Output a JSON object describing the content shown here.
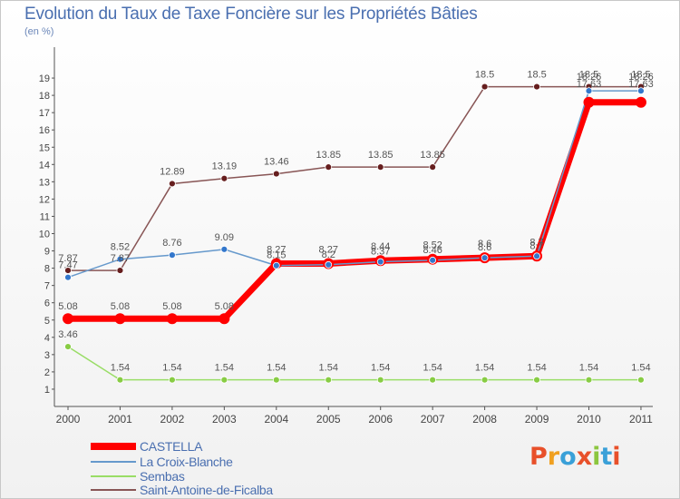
{
  "header": {
    "title": "Evolution du Taux de Taxe Foncière sur les Propriétés Bâties",
    "subtitle": "(en %)"
  },
  "brand": {
    "text": "Proxiti",
    "colors": [
      "#e8502a",
      "#f0a020",
      "#3aa0d8",
      "#e8502a",
      "#8cc63f",
      "#3aa0d8",
      "#e8502a"
    ]
  },
  "colors": {
    "axis": "#555555",
    "grid": "#e0e0e0",
    "label": "#444444"
  },
  "chart_data": {
    "type": "line",
    "title": "Evolution du Taux de Taxe Foncière sur les Propriétés Bâties",
    "ylabel": "(en %)",
    "xlabel": "",
    "ylim": [
      0,
      19
    ],
    "grid": false,
    "legend_position": "bottom-left",
    "x": [
      "2000",
      "2001",
      "2002",
      "2003",
      "2004",
      "2005",
      "2006",
      "2007",
      "2008",
      "2009",
      "2010",
      "2011"
    ],
    "yticks": [
      "1",
      "2",
      "3",
      "4",
      "5",
      "6",
      "7",
      "8",
      "9",
      "10",
      "11",
      "12",
      "13",
      "14",
      "15",
      "16",
      "17",
      "18",
      "19"
    ],
    "series": [
      {
        "name": "CASTELLA",
        "color": "#ff0000",
        "marker": "#ff0000",
        "width": 7,
        "dot": 6,
        "values": [
          5.08,
          5.08,
          5.08,
          5.08,
          8.27,
          8.27,
          8.44,
          8.52,
          8.6,
          8.7,
          17.6,
          17.6
        ],
        "labels": [
          "5.08",
          "5.08",
          "5.08",
          "5.08",
          "8.27",
          "8.27",
          "8.44",
          "8.52",
          "8.6",
          "8.7",
          "",
          ""
        ]
      },
      {
        "name": "La Croix-Blanche",
        "color": "#6699cc",
        "marker": "#3377cc",
        "width": 1.5,
        "dot": 3.5,
        "values": [
          7.47,
          8.52,
          8.76,
          9.09,
          8.15,
          8.2,
          8.37,
          8.46,
          8.6,
          8.7,
          18.26,
          18.26
        ],
        "labels": [
          "7.47",
          "8.52",
          "8.76",
          "9.09",
          "8.15",
          "8.2",
          "8.37",
          "8.46",
          "8.6",
          "8.7",
          "18.26",
          "18.26"
        ]
      },
      {
        "name": "Sembas",
        "color": "#99dd66",
        "marker": "#88cc44",
        "width": 1.5,
        "dot": 3.5,
        "values": [
          3.46,
          1.54,
          1.54,
          1.54,
          1.54,
          1.54,
          1.54,
          1.54,
          1.54,
          1.54,
          1.54,
          1.54
        ],
        "labels": [
          "3.46",
          "1.54",
          "1.54",
          "1.54",
          "1.54",
          "1.54",
          "1.54",
          "1.54",
          "1.54",
          "1.54",
          "1.54",
          "1.54"
        ]
      },
      {
        "name": "Saint-Antoine-de-Ficalba",
        "color": "#885555",
        "marker": "#661e1e",
        "width": 1.5,
        "dot": 3.5,
        "values": [
          7.87,
          7.87,
          12.89,
          13.19,
          13.46,
          13.85,
          13.85,
          13.85,
          18.5,
          18.5,
          18.5,
          18.5
        ],
        "labels": [
          "7.87",
          "7.87",
          "12.89",
          "13.19",
          "13.46",
          "13.85",
          "13.85",
          "13.85",
          "18.5",
          "18.5",
          "18.5",
          "18.5"
        ]
      }
    ],
    "extra_labels": [
      "17.63",
      "17.63"
    ]
  }
}
